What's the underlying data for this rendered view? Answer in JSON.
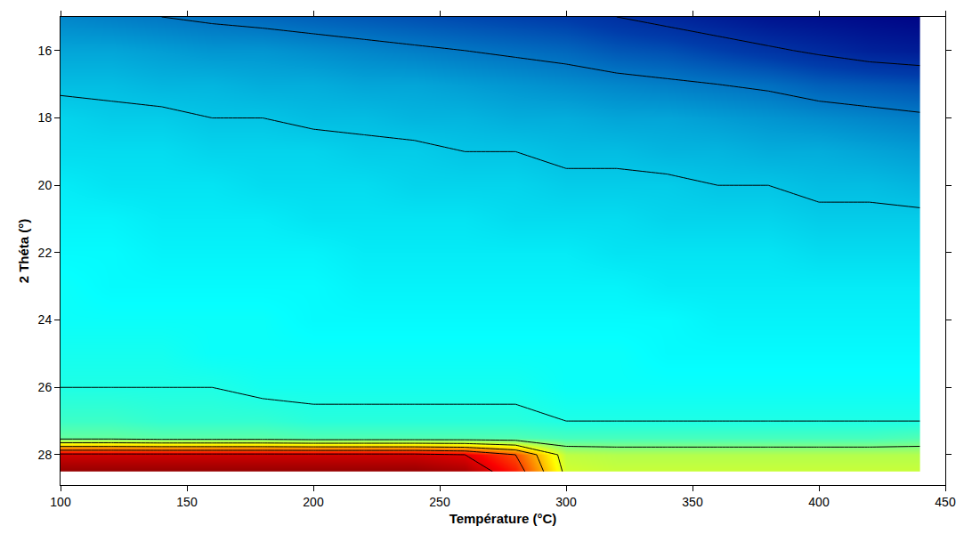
{
  "chart_data": {
    "type": "contour",
    "xlabel": "Température (°C)",
    "ylabel": "2 Théta (°)",
    "xlim": [
      100,
      450
    ],
    "xticks": [
      100,
      150,
      200,
      250,
      300,
      350,
      400,
      450
    ],
    "ylim": [
      28.9,
      15
    ],
    "yticks": [
      16,
      18,
      20,
      22,
      24,
      26,
      28
    ],
    "zlim": [
      0,
      100
    ],
    "color": "Jet",
    "grid": false,
    "x": [
      100,
      120,
      140,
      160,
      180,
      200,
      220,
      240,
      260,
      280,
      300,
      320,
      340,
      360,
      380,
      400,
      420,
      440
    ],
    "y": [
      15,
      16,
      17,
      18,
      19,
      20,
      21,
      22,
      23,
      24,
      25,
      26,
      27,
      27.5,
      28,
      28.5
    ],
    "z": [
      [
        22,
        21,
        20,
        19,
        18,
        17,
        16,
        15,
        14,
        13,
        12,
        10,
        8,
        6,
        4,
        3,
        2,
        1
      ],
      [
        26,
        26,
        25,
        24,
        24,
        23,
        22,
        21,
        20,
        19,
        18,
        16,
        15,
        13,
        11,
        9,
        7,
        6
      ],
      [
        29,
        29,
        28,
        28,
        27,
        27,
        26,
        26,
        25,
        24,
        23,
        22,
        21,
        20,
        19,
        17,
        16,
        15
      ],
      [
        32,
        31,
        31,
        30,
        30,
        29,
        29,
        28,
        28,
        27,
        27,
        26,
        26,
        25,
        24,
        23,
        22,
        21
      ],
      [
        33,
        33,
        33,
        32,
        32,
        32,
        31,
        31,
        30,
        30,
        29,
        29,
        28,
        28,
        27,
        27,
        26,
        25
      ],
      [
        35,
        34,
        34,
        34,
        33,
        33,
        33,
        32,
        32,
        32,
        31,
        31,
        31,
        30,
        30,
        29,
        29,
        28
      ],
      [
        36,
        36,
        35,
        35,
        35,
        34,
        34,
        34,
        34,
        33,
        33,
        33,
        32,
        32,
        32,
        31,
        31,
        31
      ],
      [
        37,
        37,
        36,
        36,
        36,
        36,
        35,
        35,
        35,
        35,
        35,
        34,
        34,
        34,
        34,
        33,
        33,
        33
      ],
      [
        38,
        37,
        37,
        37,
        37,
        37,
        36,
        36,
        36,
        36,
        36,
        36,
        35,
        35,
        35,
        35,
        35,
        35
      ],
      [
        38,
        38,
        38,
        38,
        38,
        37,
        37,
        37,
        37,
        37,
        37,
        37,
        37,
        36,
        36,
        36,
        36,
        36
      ],
      [
        39,
        39,
        39,
        38,
        38,
        38,
        38,
        38,
        38,
        38,
        38,
        38,
        37,
        37,
        37,
        37,
        37,
        37
      ],
      [
        40,
        40,
        40,
        40,
        39,
        39,
        39,
        39,
        39,
        39,
        38,
        38,
        38,
        38,
        38,
        38,
        38,
        38
      ],
      [
        43,
        43,
        42,
        42,
        42,
        41,
        41,
        41,
        41,
        41,
        40,
        40,
        40,
        40,
        40,
        40,
        40,
        40
      ],
      [
        47,
        47,
        46,
        46,
        46,
        45,
        45,
        45,
        45,
        45,
        44,
        44,
        44,
        44,
        44,
        44,
        44,
        45
      ],
      [
        92,
        92,
        92,
        92,
        92,
        92,
        92,
        92,
        90,
        80,
        56,
        55,
        55,
        55,
        55,
        55,
        55,
        55
      ],
      [
        98,
        98,
        98,
        98,
        98,
        98,
        98,
        98,
        96,
        85,
        58,
        57,
        57,
        57,
        57,
        57,
        57,
        57
      ]
    ]
  }
}
